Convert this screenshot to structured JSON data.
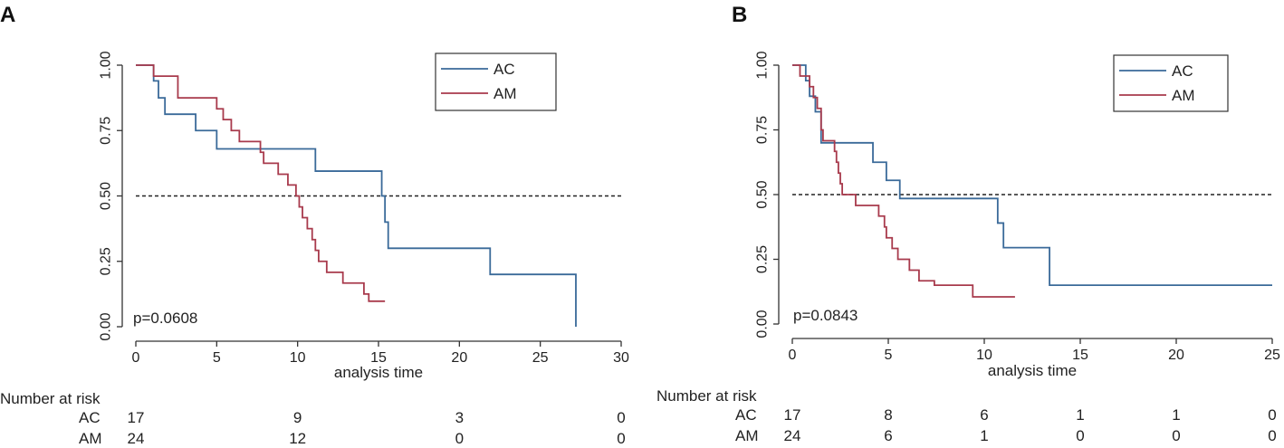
{
  "colors": {
    "AC": "#3a6a99",
    "AM": "#a83a4c",
    "axis": "#333333",
    "text": "#222222",
    "ref": "#222222"
  },
  "chart_data": [
    {
      "panel_label": "A",
      "type": "line",
      "xlabel": "analysis time",
      "ylabel": "",
      "xlim": [
        0,
        30
      ],
      "ylim": [
        0,
        1
      ],
      "x_ticks": [
        0,
        5,
        10,
        15,
        20,
        25,
        30
      ],
      "y_ticks": [
        "0.00",
        "0.25",
        "0.50",
        "0.75",
        "1.00"
      ],
      "reference_line_y": 0.5,
      "legend_position": "top-right",
      "annotation": "p=0.0608",
      "series": [
        {
          "name": "AC",
          "steps": [
            [
              0,
              1.0
            ],
            [
              1.1,
              0.94
            ],
            [
              1.4,
              0.875
            ],
            [
              1.8,
              0.8125
            ],
            [
              3.7,
              0.75
            ],
            [
              5.0,
              0.68
            ],
            [
              11.1,
              0.595
            ],
            [
              15.2,
              0.5
            ],
            [
              15.4,
              0.4
            ],
            [
              15.6,
              0.3
            ],
            [
              21.9,
              0.2
            ],
            [
              27.2,
              0.0
            ]
          ],
          "end": 27.2
        },
        {
          "name": "AM",
          "steps": [
            [
              0,
              1.0
            ],
            [
              1.1,
              0.958
            ],
            [
              2.6,
              0.875
            ],
            [
              5.0,
              0.833
            ],
            [
              5.4,
              0.792
            ],
            [
              5.9,
              0.75
            ],
            [
              6.4,
              0.708
            ],
            [
              7.7,
              0.667
            ],
            [
              7.9,
              0.625
            ],
            [
              8.8,
              0.583
            ],
            [
              9.4,
              0.542
            ],
            [
              9.9,
              0.5
            ],
            [
              10.1,
              0.458
            ],
            [
              10.3,
              0.417
            ],
            [
              10.6,
              0.375
            ],
            [
              10.9,
              0.333
            ],
            [
              11.1,
              0.292
            ],
            [
              11.3,
              0.25
            ],
            [
              11.8,
              0.208
            ],
            [
              12.8,
              0.167
            ],
            [
              14.1,
              0.125
            ],
            [
              14.4,
              0.0975
            ]
          ],
          "end": 15.4
        }
      ],
      "risk_table": {
        "title": "Number at risk",
        "times": [
          0,
          10,
          20,
          30
        ],
        "rows": [
          {
            "label": "AC",
            "counts": [
              "17",
              "9",
              "3",
              "0"
            ]
          },
          {
            "label": "AM",
            "counts": [
              "24",
              "12",
              "0",
              "0"
            ]
          }
        ]
      }
    },
    {
      "panel_label": "B",
      "type": "line",
      "xlabel": "analysis time",
      "ylabel": "",
      "xlim": [
        0,
        25
      ],
      "ylim": [
        0,
        1
      ],
      "x_ticks": [
        0,
        5,
        10,
        15,
        20,
        25
      ],
      "y_ticks": [
        "0.00",
        "0.25",
        "0.50",
        "0.75",
        "1.00"
      ],
      "reference_line_y": 0.5,
      "legend_position": "top-right",
      "annotation": "p=0.0843",
      "series": [
        {
          "name": "AC",
          "steps": [
            [
              0,
              1.0
            ],
            [
              0.7,
              0.94
            ],
            [
              0.9,
              0.88
            ],
            [
              1.2,
              0.82
            ],
            [
              1.5,
              0.7
            ],
            [
              4.2,
              0.625
            ],
            [
              4.9,
              0.555
            ],
            [
              5.6,
              0.485
            ],
            [
              10.7,
              0.39
            ],
            [
              11.0,
              0.295
            ],
            [
              13.4,
              0.15
            ]
          ],
          "end": 25.0
        },
        {
          "name": "AM",
          "steps": [
            [
              0,
              1.0
            ],
            [
              0.4,
              0.958
            ],
            [
              0.9,
              0.917
            ],
            [
              1.1,
              0.875
            ],
            [
              1.3,
              0.833
            ],
            [
              1.5,
              0.75
            ],
            [
              1.6,
              0.708
            ],
            [
              2.2,
              0.667
            ],
            [
              2.3,
              0.625
            ],
            [
              2.4,
              0.583
            ],
            [
              2.5,
              0.542
            ],
            [
              2.6,
              0.5
            ],
            [
              3.3,
              0.458
            ],
            [
              4.5,
              0.417
            ],
            [
              4.8,
              0.375
            ],
            [
              4.9,
              0.333
            ],
            [
              5.2,
              0.292
            ],
            [
              5.5,
              0.25
            ],
            [
              6.1,
              0.208
            ],
            [
              6.6,
              0.167
            ],
            [
              7.4,
              0.15
            ],
            [
              9.4,
              0.105
            ]
          ],
          "end": 11.6
        }
      ],
      "risk_table": {
        "title": "Number at risk",
        "times": [
          0,
          5,
          10,
          15,
          20,
          25
        ],
        "rows": [
          {
            "label": "AC",
            "counts": [
              "17",
              "8",
              "6",
              "1",
              "1",
              "0"
            ]
          },
          {
            "label": "AM",
            "counts": [
              "24",
              "6",
              "1",
              "0",
              "0",
              "0"
            ]
          }
        ]
      }
    }
  ]
}
